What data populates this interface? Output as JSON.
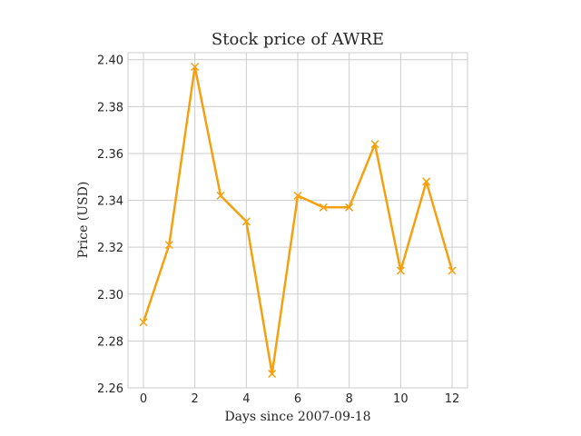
{
  "chart_data": {
    "type": "line",
    "title": "Stock price of AWRE",
    "xlabel": "Days since 2007-09-18",
    "ylabel": "Price (USD)",
    "x": [
      0,
      1,
      2,
      3,
      4,
      5,
      6,
      7,
      8,
      9,
      10,
      11,
      12
    ],
    "series": [
      {
        "values": [
          2.288,
          2.321,
          2.397,
          2.342,
          2.331,
          2.266,
          2.342,
          2.337,
          2.337,
          2.364,
          2.31,
          2.348,
          2.31
        ],
        "color": "#f5a00f",
        "marker": "x"
      }
    ],
    "xlim": [
      -0.6,
      12.6
    ],
    "ylim": [
      2.26,
      2.403
    ],
    "xticks": [
      0,
      2,
      4,
      6,
      8,
      10,
      12
    ],
    "yticks": [
      2.26,
      2.28,
      2.3,
      2.32,
      2.34,
      2.36,
      2.38,
      2.4
    ],
    "xtick_labels": [
      "0",
      "2",
      "4",
      "6",
      "8",
      "10",
      "12"
    ],
    "ytick_labels": [
      "2.26",
      "2.28",
      "2.30",
      "2.32",
      "2.34",
      "2.36",
      "2.38",
      "2.40"
    ],
    "grid": true,
    "legend": false
  }
}
